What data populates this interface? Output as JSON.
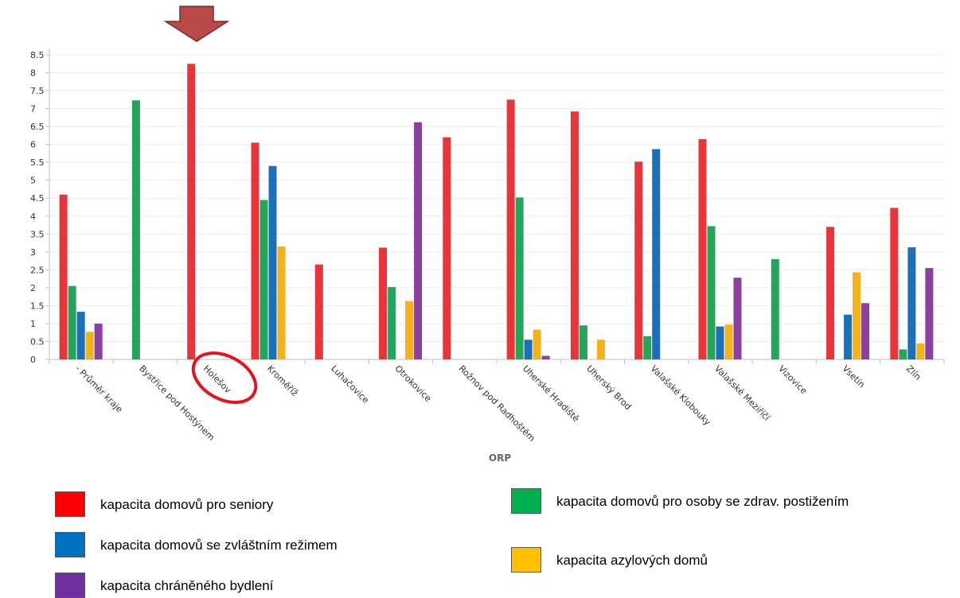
{
  "chart_data": {
    "type": "bar",
    "xlabel": "ORP",
    "ylim": [
      0,
      8.5
    ],
    "y_ticks": [
      "0",
      "0.5",
      "1",
      "1.5",
      "2",
      "2.5",
      "3",
      "3.5",
      "4",
      "4.5",
      "5",
      "5.5",
      "6",
      "6.5",
      "7",
      "7.5",
      "8",
      "8.5"
    ],
    "grid": true,
    "categories": [
      "- Průměr kraje",
      "Bystřice pod Hostýnem",
      "Holešov",
      "Kroměříž",
      "Luhačovice",
      "Otrokovice",
      "Rožnov pod Radhoštěm",
      "Uherské Hradiště",
      "Uherský Brod",
      "Valašské Klobouky",
      "Valašské Meziříčí",
      "Vizovice",
      "Vsetín",
      "Zlín"
    ],
    "series": [
      {
        "name": "kapacita domovů pro seniory",
        "color": "#e8343a",
        "values": [
          4.6,
          0,
          8.25,
          6.05,
          2.65,
          3.12,
          6.2,
          7.25,
          6.92,
          5.52,
          6.15,
          0,
          3.7,
          4.23
        ]
      },
      {
        "name": "kapacita domovů pro osoby se zdrav. postižením",
        "color": "#25a55a",
        "values": [
          2.05,
          7.23,
          0,
          4.45,
          0,
          2.02,
          0,
          4.52,
          0.95,
          0.65,
          3.72,
          2.8,
          0,
          0.28
        ]
      },
      {
        "name": "kapacita domovů se zvláštním režimem",
        "color": "#1c6fba",
        "values": [
          1.33,
          0,
          0,
          5.4,
          0,
          0,
          0,
          0.55,
          0,
          5.87,
          0.92,
          0,
          1.25,
          3.13
        ]
      },
      {
        "name": "kapacita azylových domů",
        "color": "#f3b21b",
        "values": [
          0.77,
          0,
          0,
          3.15,
          0,
          1.63,
          0,
          0.83,
          0.55,
          0,
          0.97,
          0,
          2.43,
          0.45
        ]
      },
      {
        "name": "kapacita chráněného bydlení",
        "color": "#8b3fa0",
        "values": [
          1.0,
          0,
          0,
          0,
          0,
          6.62,
          0,
          0.1,
          0,
          0,
          2.28,
          0,
          1.57,
          2.55
        ]
      }
    ],
    "annotations": {
      "arrow_color": "#b94a48",
      "highlight_color": "#e8101a",
      "highlighted_category": "Holešov"
    }
  },
  "legend": {
    "items": [
      {
        "label": "kapacita domovů pro seniory",
        "color": "#ff0000"
      },
      {
        "label": "kapacita domovů pro osoby se zdrav. postižením",
        "color": "#00b050"
      },
      {
        "label": "kapacita domovů se zvláštním režimem",
        "color": "#0070c0"
      },
      {
        "label": "kapacita azylových domů",
        "color": "#ffc000"
      },
      {
        "label": "kapacita chráněného bydlení",
        "color": "#7030a0"
      }
    ]
  }
}
